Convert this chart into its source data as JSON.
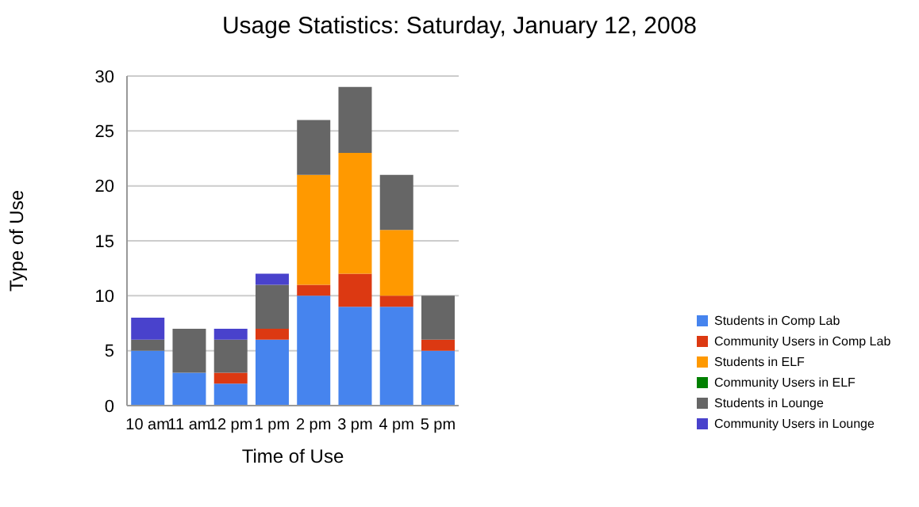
{
  "chart_data": {
    "type": "bar",
    "title": "Usage Statistics: Saturday, January 12, 2008",
    "xlabel": "Time of Use",
    "ylabel": "Type of Use",
    "categories": [
      "10 am",
      "11 am",
      "12 pm",
      "1 pm",
      "2 pm",
      "3 pm",
      "4 pm",
      "5 pm"
    ],
    "stacked": true,
    "ylim": [
      0,
      30
    ],
    "yticks": [
      0,
      5,
      10,
      15,
      20,
      25,
      30
    ],
    "grid": "y",
    "legend": "right",
    "series": [
      {
        "name": "Students in Comp Lab",
        "color": "#4684ee",
        "values": [
          5,
          3,
          2,
          6,
          10,
          9,
          9,
          5
        ]
      },
      {
        "name": "Community Users in Comp Lab",
        "color": "#dc3912",
        "values": [
          0,
          0,
          1,
          1,
          1,
          3,
          1,
          1
        ]
      },
      {
        "name": "Students in ELF",
        "color": "#ff9900",
        "values": [
          0,
          0,
          0,
          0,
          10,
          11,
          6,
          0
        ]
      },
      {
        "name": "Community Users in ELF",
        "color": "#008000",
        "values": [
          0,
          0,
          0,
          0,
          0,
          0,
          0,
          0
        ]
      },
      {
        "name": "Students in Lounge",
        "color": "#666666",
        "values": [
          1,
          4,
          3,
          4,
          5,
          6,
          5,
          4
        ]
      },
      {
        "name": "Community Users in Lounge",
        "color": "#4942cc",
        "values": [
          2,
          0,
          1,
          1,
          0,
          0,
          0,
          0
        ]
      }
    ]
  }
}
